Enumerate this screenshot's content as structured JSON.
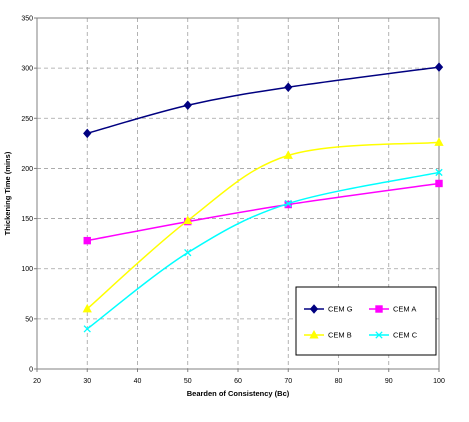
{
  "chart_data": {
    "type": "line",
    "xlabel": "Bearden of Consistency (Bc)",
    "ylabel": "Thickening Time (mins)",
    "xlim": [
      20,
      100
    ],
    "ylim": [
      0,
      350
    ],
    "x_ticks": [
      20,
      30,
      40,
      50,
      60,
      70,
      80,
      90,
      100
    ],
    "y_ticks": [
      0,
      50,
      100,
      150,
      200,
      250,
      300,
      350
    ],
    "grid": true,
    "legend_position": "bottom-right",
    "series": [
      {
        "name": "CEM G",
        "color": "#000080",
        "marker": "diamond",
        "x": [
          30,
          50,
          70,
          100
        ],
        "y": [
          235,
          263,
          281,
          301
        ]
      },
      {
        "name": "CEM A",
        "color": "#ff00ff",
        "marker": "square",
        "x": [
          30,
          50,
          70,
          100
        ],
        "y": [
          128,
          147,
          164,
          185
        ]
      },
      {
        "name": "CEM B",
        "color": "#ffff00",
        "marker": "triangle",
        "x": [
          30,
          50,
          70,
          100
        ],
        "y": [
          60,
          148,
          213,
          226
        ]
      },
      {
        "name": "CEM C",
        "color": "#00ffff",
        "marker": "x",
        "x": [
          30,
          50,
          70,
          100
        ],
        "y": [
          40,
          116,
          165,
          196
        ]
      }
    ]
  }
}
